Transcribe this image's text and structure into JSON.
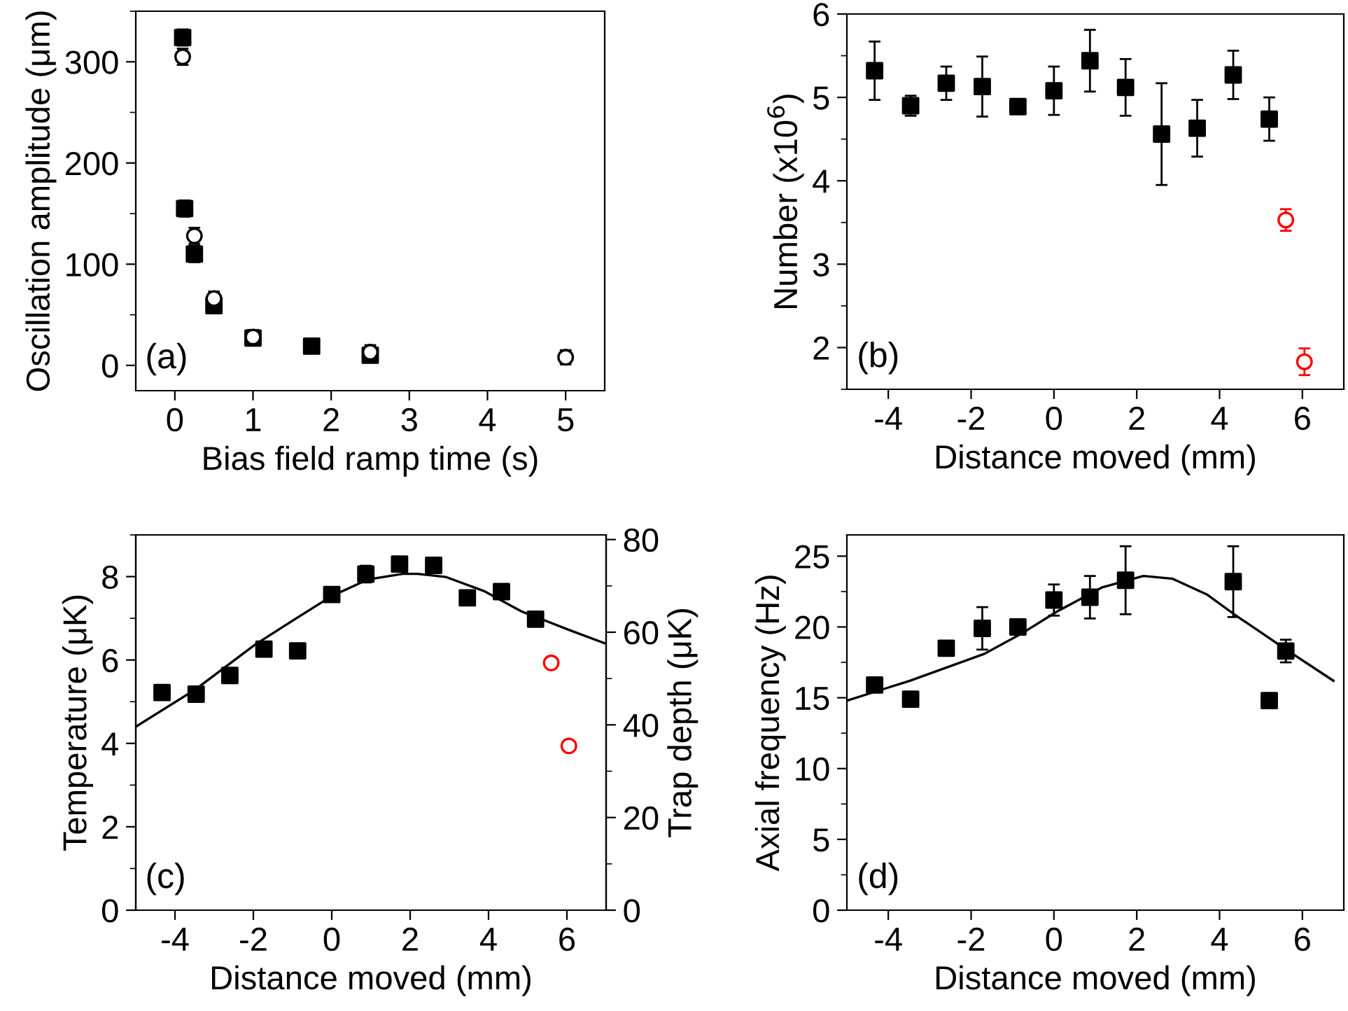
{
  "chart_data": [
    {
      "type": "scatter",
      "xlabel": "Bias field ramp time (s)",
      "ylabel": "Oscillation amplitude (μm)",
      "xlim": [
        -0.5,
        5.5
      ],
      "ylim": [
        -25,
        350
      ],
      "xticks": [
        0,
        1,
        2,
        3,
        4,
        5
      ],
      "yticks": [
        0,
        100,
        200,
        300
      ],
      "annotations": [
        "(a)"
      ],
      "legend": false,
      "grid": false,
      "series": [
        {
          "marker": "square",
          "color": "#000000",
          "x": [
            0.1,
            0.125,
            0.25,
            0.5,
            1.0,
            1.75,
            2.5
          ],
          "values": [
            324,
            155,
            110,
            59,
            27,
            19,
            10
          ],
          "errors": [
            8,
            8,
            8,
            7,
            7,
            7,
            7
          ]
        },
        {
          "marker": "circle",
          "color": "#000000",
          "x": [
            0.1,
            0.25,
            0.5,
            1.0,
            2.5,
            5.0
          ],
          "values": [
            305,
            128,
            66,
            28,
            13,
            8
          ],
          "errors": [
            8,
            8,
            7,
            7,
            7,
            7
          ]
        }
      ]
    },
    {
      "type": "scatter",
      "xlabel": "Distance moved (mm)",
      "ylabel": "Number (x10$^{6}$)",
      "xlim": [
        -5,
        7
      ],
      "ylim": [
        1.5,
        6
      ],
      "xticks": [
        -4,
        -2,
        0,
        2,
        4,
        6
      ],
      "yticks": [
        2,
        3,
        4,
        5,
        6
      ],
      "annotations": [
        "(b)"
      ],
      "legend": false,
      "grid": false,
      "series": [
        {
          "marker": "square",
          "color": "#000000",
          "x": [
            -4.33,
            -3.46,
            -2.6,
            -1.73,
            -0.87,
            0,
            0.87,
            1.73,
            2.6,
            3.46,
            4.33,
            5.2
          ],
          "values": [
            5.32,
            4.9,
            5.17,
            5.13,
            4.89,
            5.08,
            5.44,
            5.12,
            4.56,
            4.63,
            5.27,
            4.74
          ],
          "errors": [
            0.35,
            0.12,
            0.2,
            0.36,
            0.03,
            0.29,
            0.37,
            0.34,
            0.61,
            0.34,
            0.29,
            0.26
          ]
        },
        {
          "marker": "circle",
          "color": "#ff0000",
          "x": [
            5.6,
            6.05
          ],
          "values": [
            3.53,
            1.83
          ],
          "errors": [
            0.13,
            0.16
          ]
        }
      ]
    },
    {
      "type": "scatter",
      "xlabel": "Distance moved (mm)",
      "ylabel": "Temperature (μK)",
      "y2label": "Trap depth (μK)",
      "xlim": [
        -5,
        7
      ],
      "ylim": [
        0,
        9
      ],
      "y2lim": [
        0,
        81
      ],
      "xticks": [
        -4,
        -2,
        0,
        2,
        4,
        6
      ],
      "yticks": [
        0,
        2,
        4,
        6,
        8
      ],
      "y2ticks": [
        0,
        20,
        40,
        60,
        80
      ],
      "annotations": [
        "(c)"
      ],
      "legend": false,
      "grid": false,
      "series": [
        {
          "marker": "square",
          "color": "#000000",
          "x": [
            -4.33,
            -3.46,
            -2.6,
            -1.73,
            -0.87,
            0,
            0.87,
            1.73,
            2.6,
            3.46,
            4.33,
            5.2
          ],
          "values": [
            5.22,
            5.18,
            5.63,
            6.26,
            6.22,
            7.57,
            8.06,
            8.3,
            8.27,
            7.49,
            7.64,
            6.98
          ],
          "errors": [
            0.08,
            0.08,
            0.1,
            0.1,
            0.15,
            0.08,
            0.2,
            0.08,
            0.17,
            0.17,
            0.08,
            0.08
          ]
        },
        {
          "marker": "circle",
          "color": "#ff0000",
          "x": [
            5.6,
            6.05
          ],
          "values": [
            5.93,
            3.94
          ]
        },
        {
          "type": "line",
          "axis": "y2",
          "marker": "none",
          "line_style": "solid",
          "color": "#000000",
          "x": [
            -5,
            -3.47,
            -1.96,
            -0.94,
            0.02,
            0.93,
            1.81,
            2.19,
            2.92,
            3.88,
            4.84,
            6.05,
            7
          ],
          "values": [
            39.6,
            47.7,
            57.3,
            62.8,
            67.9,
            71.4,
            72.6,
            72.6,
            71.9,
            68.9,
            64.5,
            60.5,
            57.5
          ]
        }
      ]
    },
    {
      "type": "scatter",
      "xlabel": "Distance moved (mm)",
      "ylabel": "Axial frequency (Hz)",
      "xlim": [
        -5,
        7
      ],
      "ylim": [
        0,
        26.5
      ],
      "xticks": [
        -4,
        -2,
        0,
        2,
        4,
        6
      ],
      "yticks": [
        0,
        5,
        10,
        15,
        20,
        25
      ],
      "annotations": [
        "(d)"
      ],
      "legend": false,
      "grid": false,
      "series": [
        {
          "marker": "square",
          "color": "#000000",
          "x": [
            -4.33,
            -3.46,
            -2.6,
            -1.73,
            -0.87,
            0,
            0.87,
            1.73,
            4.33,
            5.2,
            5.6
          ],
          "values": [
            15.9,
            14.9,
            18.5,
            19.9,
            20.0,
            21.9,
            22.1,
            23.3,
            23.2,
            14.8,
            18.3
          ],
          "errors": [
            0.3,
            0.2,
            0.3,
            1.5,
            0.2,
            1.1,
            1.5,
            2.4,
            2.5,
            0.3,
            0.8
          ]
        },
        {
          "type": "line",
          "marker": "none",
          "line_style": "solid",
          "color": "#000000",
          "x": [
            -5,
            -3.48,
            -1.68,
            -0.8,
            0.08,
            1.17,
            2.16,
            2.87,
            3.69,
            4.35,
            5.61,
            6.75
          ],
          "values": [
            14.8,
            16.2,
            18.1,
            19.5,
            21.1,
            22.8,
            23.6,
            23.4,
            22.3,
            20.9,
            18.4,
            16.2
          ]
        }
      ]
    }
  ]
}
